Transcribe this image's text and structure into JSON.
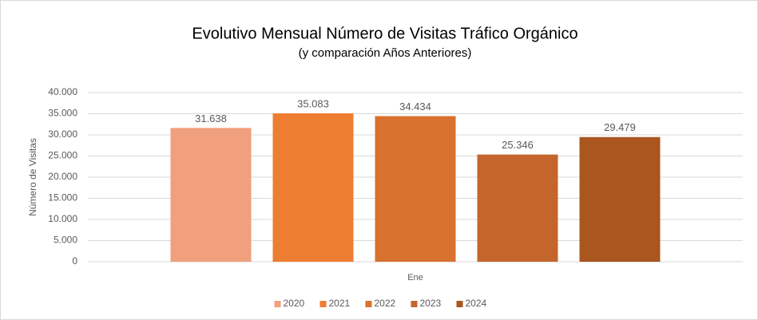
{
  "chart_data": {
    "type": "bar",
    "title": "Evolutivo Mensual Número de Visitas Tráfico Orgánico",
    "subtitle": "(y comparación Años Anteriores)",
    "y_label": "Número de Visitas",
    "categories": [
      "Ene"
    ],
    "series": [
      {
        "name": "2020",
        "color": "#f0a07c",
        "values": [
          31638
        ],
        "value_labels": [
          "31.638"
        ]
      },
      {
        "name": "2021",
        "color": "#ed7d31",
        "values": [
          35083
        ],
        "value_labels": [
          "35.083"
        ]
      },
      {
        "name": "2022",
        "color": "#d9712f",
        "values": [
          34434
        ],
        "value_labels": [
          "34.434"
        ]
      },
      {
        "name": "2023",
        "color": "#c4652c",
        "values": [
          25346
        ],
        "value_labels": [
          "25.346"
        ]
      },
      {
        "name": "2024",
        "color": "#a9561f",
        "values": [
          29479
        ],
        "value_labels": [
          "29.479"
        ]
      }
    ],
    "ylim": [
      0,
      40000
    ],
    "yticks": [
      0,
      {
        "value": 5000,
        "label": "5.000"
      },
      {
        "value": 10000,
        "label": "10.000"
      },
      {
        "value": 15000,
        "label": "15.000"
      },
      {
        "value": 20000,
        "label": "20.000"
      },
      {
        "value": 25000,
        "label": "25.000"
      },
      {
        "value": 30000,
        "label": "30.000"
      },
      {
        "value": 35000,
        "label": "35.000"
      },
      {
        "value": 40000,
        "label": "40.000"
      }
    ],
    "grid": true,
    "legend": "bottom"
  }
}
